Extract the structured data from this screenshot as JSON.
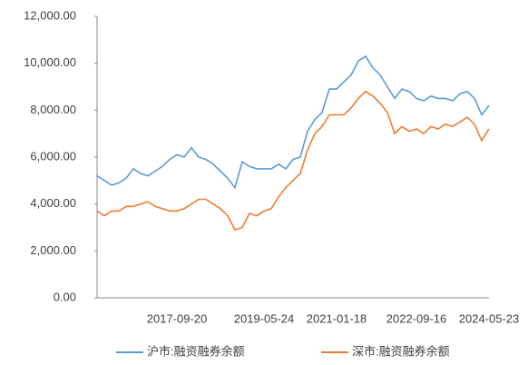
{
  "chart_data": {
    "type": "line",
    "categories": [
      null,
      null,
      null,
      null,
      null,
      null,
      null,
      null,
      null,
      null,
      null,
      "2017-09-20",
      null,
      null,
      null,
      null,
      null,
      null,
      null,
      null,
      null,
      null,
      null,
      "2019-05-24",
      null,
      null,
      null,
      null,
      null,
      null,
      null,
      null,
      null,
      "2021-01-18",
      null,
      null,
      null,
      null,
      null,
      null,
      null,
      null,
      null,
      null,
      "2022-09-16",
      null,
      null,
      null,
      null,
      null,
      null,
      null,
      null,
      null,
      "2024-05-23"
    ],
    "series": [
      {
        "name": "沪市:融资融券余额",
        "color": "#5b9bd5",
        "values": [
          5200,
          5000,
          4800,
          4900,
          5100,
          5500,
          5300,
          5200,
          5400,
          5600,
          5900,
          6100,
          6000,
          6400,
          6000,
          5900,
          5700,
          5400,
          5100,
          4700,
          5800,
          5600,
          5500,
          5500,
          5500,
          5700,
          5500,
          5900,
          6000,
          7100,
          7600,
          7900,
          8900,
          8900,
          9200,
          9500,
          10100,
          10300,
          9800,
          9500,
          9000,
          8500,
          8900,
          8800,
          8500,
          8400,
          8600,
          8500,
          8500,
          8400,
          8700,
          8800,
          8500,
          7800,
          8200
        ]
      },
      {
        "name": "深市:融资融券余额",
        "color": "#ed7d31",
        "values": [
          3700,
          3500,
          3700,
          3700,
          3900,
          3900,
          4000,
          4100,
          3900,
          3800,
          3700,
          3700,
          3800,
          4000,
          4200,
          4200,
          4000,
          3800,
          3500,
          2900,
          3000,
          3600,
          3500,
          3700,
          3800,
          4300,
          4700,
          5000,
          5300,
          6300,
          7000,
          7300,
          7800,
          7800,
          7800,
          8100,
          8500,
          8800,
          8600,
          8300,
          7900,
          7000,
          7300,
          7100,
          7200,
          7000,
          7300,
          7200,
          7400,
          7300,
          7500,
          7700,
          7400,
          6700,
          7200
        ]
      }
    ],
    "ylim": [
      0,
      12000
    ],
    "yticks": [
      {
        "value": 0,
        "label": "0.00"
      },
      {
        "value": 2000,
        "label": "2,000.00"
      },
      {
        "value": 4000,
        "label": "4,000.00"
      },
      {
        "value": 6000,
        "label": "6,000.00"
      },
      {
        "value": 8000,
        "label": "8,000.00"
      },
      {
        "value": 10000,
        "label": "10,000.00"
      },
      {
        "value": 12000,
        "label": "12,000.00"
      }
    ],
    "grid": false,
    "legend": "bottom"
  }
}
